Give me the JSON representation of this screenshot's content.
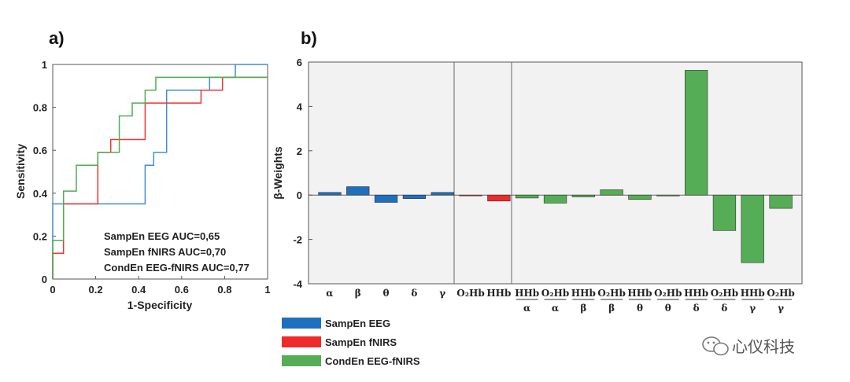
{
  "panel_labels": {
    "a": "a)",
    "b": "b)"
  },
  "chart_data": [
    {
      "type": "line",
      "subtype": "roc-step",
      "xlabel": "1-Specificity",
      "ylabel": "Sensitivity",
      "xlim": [
        0,
        1
      ],
      "ylim": [
        0,
        1
      ],
      "xticks": [
        "0",
        "0.2",
        "0.4",
        "0.6",
        "0.8",
        "1"
      ],
      "yticks": [
        "0",
        "0.2",
        "0.4",
        "0.6",
        "0.8",
        "1"
      ],
      "series": [
        {
          "name": "SampEn EEG",
          "color": "#3d8fd6",
          "x": [
            0,
            0,
            0.43,
            0.43,
            0.47,
            0.47,
            0.53,
            0.53,
            0.73,
            0.73,
            0.85,
            0.85,
            1
          ],
          "y": [
            0,
            0.35,
            0.35,
            0.53,
            0.53,
            0.59,
            0.59,
            0.88,
            0.88,
            0.94,
            0.94,
            1,
            1
          ]
        },
        {
          "name": "SampEn fNIRS",
          "color": "#f03535",
          "x": [
            0,
            0,
            0.05,
            0.05,
            0.21,
            0.21,
            0.27,
            0.27,
            0.43,
            0.43,
            0.69,
            0.69,
            0.79,
            0.79,
            1
          ],
          "y": [
            0,
            0.12,
            0.12,
            0.35,
            0.35,
            0.59,
            0.59,
            0.65,
            0.65,
            0.82,
            0.82,
            0.88,
            0.88,
            0.94,
            0.94
          ]
        },
        {
          "name": "CondEn EEG-fNIRS",
          "color": "#4caf50",
          "x": [
            0,
            0,
            0.05,
            0.05,
            0.11,
            0.11,
            0.21,
            0.21,
            0.31,
            0.31,
            0.37,
            0.37,
            0.43,
            0.43,
            0.48,
            0.48,
            1
          ],
          "y": [
            0,
            0.18,
            0.18,
            0.41,
            0.41,
            0.53,
            0.53,
            0.59,
            0.59,
            0.76,
            0.76,
            0.82,
            0.82,
            0.88,
            0.88,
            0.94,
            0.94
          ]
        }
      ],
      "annotations": [
        "SampEn EEG AUC=0,65",
        "SampEn fNIRS AUC=0,70",
        "CondEn EEG-fNIRS AUC=0,77"
      ]
    },
    {
      "type": "bar",
      "ylabel": "β-Weights",
      "ylim": [
        -4,
        6
      ],
      "yticks": [
        "-4",
        "-2",
        "0",
        "2",
        "4",
        "6"
      ],
      "grid": false,
      "bars": [
        {
          "label": "α",
          "value": 0.12,
          "color": "#1f6fbf"
        },
        {
          "label": "β",
          "value": 0.38,
          "color": "#1f6fbf"
        },
        {
          "label": "θ",
          "value": -0.33,
          "color": "#1f6fbf"
        },
        {
          "label": "δ",
          "value": -0.16,
          "color": "#1f6fbf"
        },
        {
          "label": "γ",
          "value": 0.12,
          "color": "#1f6fbf"
        },
        {
          "label": "O₂Hb",
          "value": -0.03,
          "color": "#ee2a2a"
        },
        {
          "label": "HHb",
          "value": -0.27,
          "color": "#ee2a2a"
        },
        {
          "label": "HHb",
          "sub": "α",
          "value": -0.13,
          "color": "#55ad55"
        },
        {
          "label": "O₂Hb",
          "sub": "α",
          "value": -0.36,
          "color": "#55ad55"
        },
        {
          "label": "HHb",
          "sub": "β",
          "value": -0.08,
          "color": "#55ad55"
        },
        {
          "label": "O₂Hb",
          "sub": "β",
          "value": 0.24,
          "color": "#55ad55"
        },
        {
          "label": "HHb",
          "sub": "θ",
          "value": -0.2,
          "color": "#55ad55"
        },
        {
          "label": "O₂Hb",
          "sub": "θ",
          "value": -0.04,
          "color": "#55ad55"
        },
        {
          "label": "HHb",
          "sub": "δ",
          "value": 5.63,
          "color": "#55ad55"
        },
        {
          "label": "O₂Hb",
          "sub": "δ",
          "value": -1.6,
          "color": "#55ad55"
        },
        {
          "label": "HHb",
          "sub": "γ",
          "value": -3.05,
          "color": "#55ad55"
        },
        {
          "label": "O₂Hb",
          "sub": "γ",
          "value": -0.6,
          "color": "#55ad55"
        }
      ],
      "legend": [
        {
          "name": "SampEn EEG",
          "color": "#1f6fbf"
        },
        {
          "name": "SampEn fNIRS",
          "color": "#ee2a2a"
        },
        {
          "name": "CondEn EEG-fNIRS",
          "color": "#55ad55"
        }
      ],
      "legend_position": "bottom-left"
    }
  ],
  "watermark": "心仪科技"
}
